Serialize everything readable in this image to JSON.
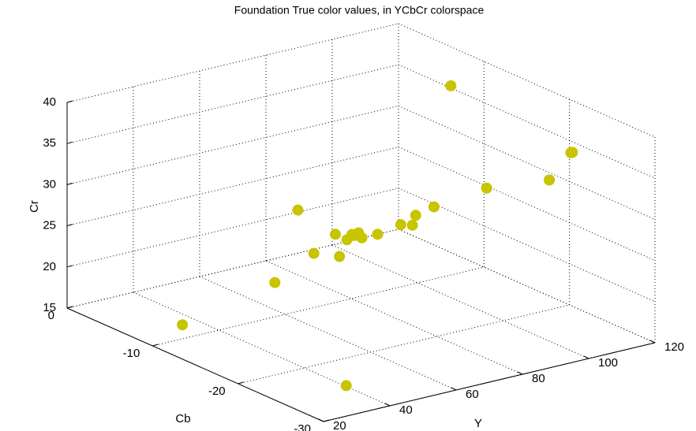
{
  "chart_data": {
    "type": "scatter3d",
    "title": "Foundation True color values, in YCbCr colorspace",
    "xlabel": "Y",
    "ylabel": "Cb",
    "zlabel": "Cr",
    "color": "#c8c400",
    "xlim": [
      20,
      120
    ],
    "xticks": [
      20,
      40,
      60,
      80,
      100,
      120
    ],
    "ylim": [
      -30,
      0
    ],
    "yticks": [
      0,
      -10,
      -20,
      -30
    ],
    "zlim": [
      15,
      40
    ],
    "zticks": [
      15,
      20,
      25,
      30,
      35,
      40
    ],
    "grid": true,
    "series": [
      {
        "x": [
          110,
          108,
          107.5,
          101,
          95,
          92,
          86.5,
          85.5,
          82,
          75,
          77,
          76,
          75,
          78,
          73.5,
          70,
          69,
          63.5,
          63.5,
          44,
          29,
          32
        ],
        "y": [
          -10,
          -25,
          -25,
          -25,
          -20,
          -15,
          -15,
          -15,
          -15,
          -15,
          -12,
          -12,
          -12,
          -12,
          -12,
          -12,
          -8,
          -12,
          -15,
          -15,
          -10,
          -28
        ],
        "z": [
          38,
          37,
          37,
          34.3,
          31.6,
          27.3,
          26.8,
          25.7,
          26.1,
          25.6,
          24.2,
          24,
          24.2,
          23.5,
          23.7,
          24.7,
          25.9,
          23,
          24,
          22.7,
          16.7,
          17.3
        ]
      }
    ]
  }
}
